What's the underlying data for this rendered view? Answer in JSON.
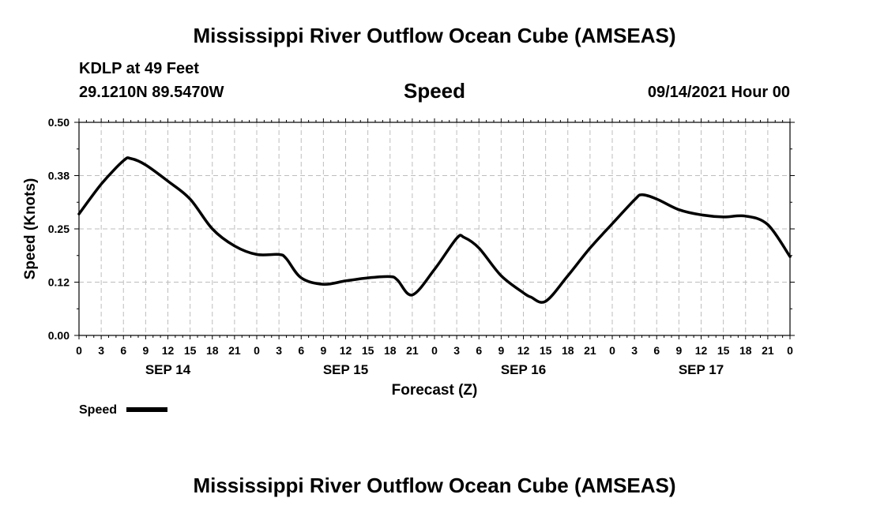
{
  "page": {
    "title_top": "Mississippi River Outflow Ocean Cube (AMSEAS)",
    "title_bottom": "Mississippi River Outflow Ocean Cube (AMSEAS)",
    "station": "KDLP at 49 Feet",
    "coords": "29.1210N  89.5470W",
    "subtitle": "Speed",
    "timestamp": "09/14/2021 Hour 00"
  },
  "chart_data": {
    "type": "line",
    "title": "Speed",
    "xlabel": "Forecast (Z)",
    "ylabel": "Speed (Knots)",
    "xlim": [
      0,
      96
    ],
    "ylim": [
      0,
      0.5
    ],
    "ytick_labels": [
      "0.00",
      "0.12",
      "0.25",
      "0.38",
      "0.50"
    ],
    "ytick_values": [
      0,
      0.125,
      0.25,
      0.375,
      0.5
    ],
    "xtick_labels": [
      "0",
      "3",
      "6",
      "9",
      "12",
      "15",
      "18",
      "21",
      "0",
      "3",
      "6",
      "9",
      "12",
      "15",
      "18",
      "21",
      "0",
      "3",
      "6",
      "9",
      "12",
      "15",
      "18",
      "21",
      "0",
      "3",
      "6",
      "9",
      "12",
      "15",
      "18",
      "21",
      "0"
    ],
    "date_labels": [
      {
        "label": "SEP 14",
        "hour": 12
      },
      {
        "label": "SEP 15",
        "hour": 36
      },
      {
        "label": "SEP 16",
        "hour": 60
      },
      {
        "label": "SEP 17",
        "hour": 84
      }
    ],
    "grid": true,
    "legend": {
      "label": "Speed",
      "placement": "bottom-left"
    },
    "series": [
      {
        "name": "Speed",
        "color": "#000000",
        "x": [
          0,
          3,
          6,
          7,
          9,
          12,
          15,
          18,
          21,
          24,
          27,
          28,
          30,
          33,
          36,
          39,
          42,
          43,
          45,
          48,
          51,
          52,
          54,
          57,
          60,
          61,
          63,
          66,
          69,
          72,
          75,
          76,
          78,
          81,
          84,
          87,
          90,
          93,
          96
        ],
        "values": [
          0.285,
          0.355,
          0.41,
          0.415,
          0.4,
          0.362,
          0.32,
          0.25,
          0.21,
          0.19,
          0.19,
          0.18,
          0.135,
          0.12,
          0.128,
          0.135,
          0.138,
          0.13,
          0.095,
          0.155,
          0.228,
          0.23,
          0.205,
          0.14,
          0.1,
          0.09,
          0.08,
          0.14,
          0.205,
          0.262,
          0.318,
          0.33,
          0.32,
          0.295,
          0.283,
          0.278,
          0.28,
          0.26,
          0.185
        ]
      }
    ]
  }
}
